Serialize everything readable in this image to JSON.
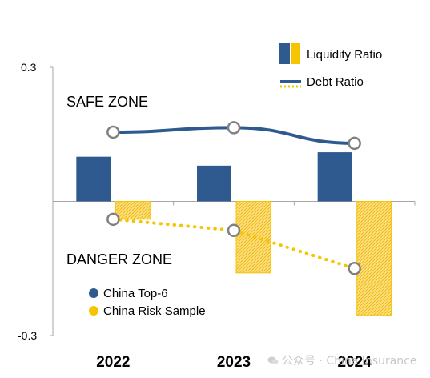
{
  "chart_data": {
    "type": "bar",
    "categories": [
      "2022",
      "2023",
      "2024"
    ],
    "ylim": [
      -0.3,
      0.3
    ],
    "yticks": [
      "0.3",
      "-0.3"
    ],
    "annotations": {
      "safe": "SAFE ZONE",
      "danger": "DANGER ZONE"
    },
    "metric_legend": {
      "liquidity": "Liquidity Ratio",
      "debt": "Debt Ratio",
      "placement": "top-right"
    },
    "group_legend": {
      "top6": "China Top-6",
      "risk": "China Risk Sample",
      "placement": "bottom-left"
    },
    "series": [
      {
        "group": "top6",
        "metric": "liquidity",
        "style": "bar",
        "values": [
          0.1,
          0.08,
          0.11
        ]
      },
      {
        "group": "risk",
        "metric": "liquidity",
        "style": "bar",
        "values": [
          -0.04,
          -0.16,
          -0.255
        ]
      },
      {
        "group": "top6",
        "metric": "debt",
        "style": "line",
        "values": [
          0.155,
          0.165,
          0.13
        ]
      },
      {
        "group": "risk",
        "metric": "debt",
        "style": "dotted-line",
        "values": [
          -0.04,
          -0.065,
          -0.15
        ]
      }
    ],
    "colors": {
      "top6": "#2e5a8f",
      "risk": "#f7c400",
      "risk_fill": "#fbe08a",
      "axis": "#a6a6a6",
      "marker_edge": "#808080"
    }
  },
  "watermark": "公众号 · China Insurance"
}
